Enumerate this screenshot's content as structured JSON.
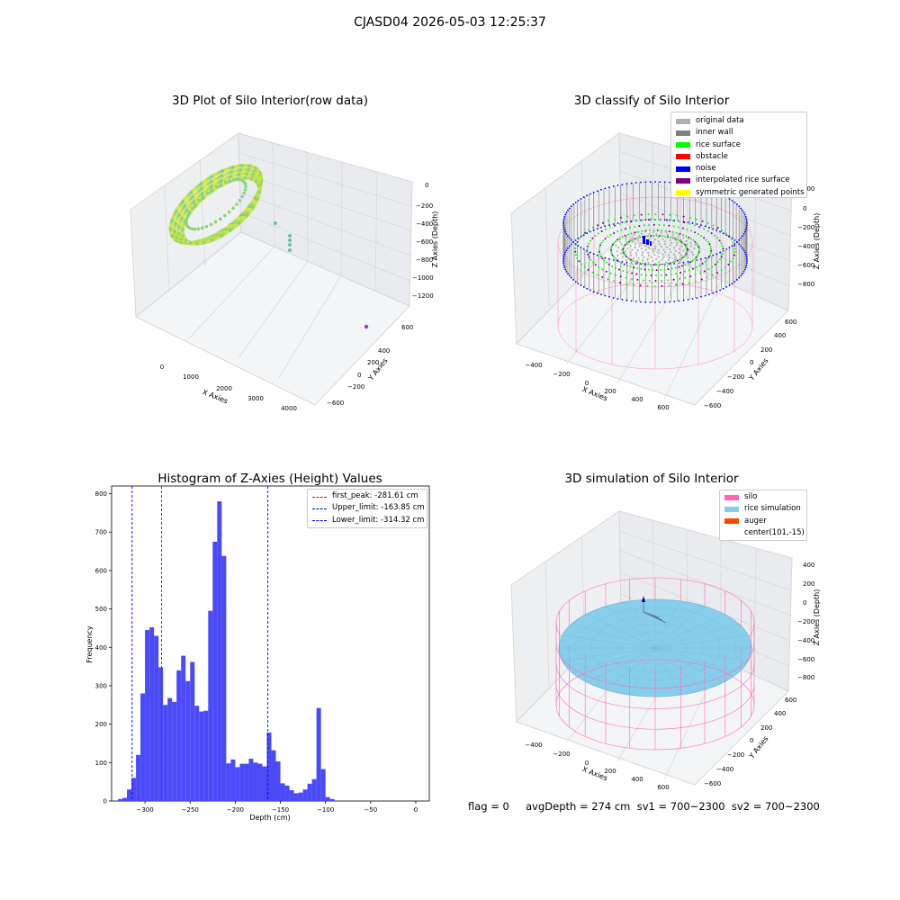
{
  "suptitle": "CJASD04 2026-05-03 12:25:37",
  "status_text": "flag = 0     avgDepth = 274 cm  sv1 = 700~2300  sv2 = 700~2300",
  "colors": {
    "pink": "#ff69b4",
    "skyblue": "#87ceeb",
    "hist": "#4a4af7",
    "red": "#ff0000",
    "blue": "#0000ff",
    "green": "#00ff00",
    "grey": "#b0b0b0"
  },
  "chart_data": [
    {
      "type": "scatter",
      "title": "3D Plot of Silo Interior(row data)",
      "xlabel": "X Axies",
      "ylabel": "Y Axies",
      "zlabel": "Z Axies (Depth)",
      "x_ticks": [
        "0",
        "1000",
        "2000",
        "3000",
        "4000"
      ],
      "y_ticks": [
        "600",
        "400",
        "200",
        "0",
        "−200",
        "−400",
        "−600"
      ],
      "z_ticks": [
        "0",
        "−200",
        "−400",
        "−600",
        "−800",
        "−1000",
        "−1200"
      ]
    },
    {
      "type": "scatter",
      "title": "3D classify of Silo Interior",
      "xlabel": "X Axies",
      "ylabel": "Y Axies",
      "zlabel": "Z Axies (Depth)",
      "x_ticks": [
        "−400",
        "−200",
        "0",
        "200",
        "400",
        "600"
      ],
      "y_ticks": [
        "600",
        "400",
        "200",
        "0",
        "−200",
        "−400",
        "−600"
      ],
      "z_ticks": [
        "200",
        "0",
        "−200",
        "−400",
        "−600",
        "−800"
      ],
      "legend": [
        {
          "label": "original data",
          "color": "#b0b0b0"
        },
        {
          "label": "inner wall",
          "color": "#808080"
        },
        {
          "label": "rice surface",
          "color": "#00ff00"
        },
        {
          "label": "obstacle",
          "color": "#ff0000"
        },
        {
          "label": "noise",
          "color": "#0000ff"
        },
        {
          "label": "interpolated rice surface",
          "color": "#800080"
        },
        {
          "label": "symmetric generated points",
          "color": "#ffff00"
        }
      ],
      "legend_position": "upper right"
    },
    {
      "type": "bar",
      "title": "Histogram of Z-Axies (Height) Values",
      "xlabel": "Depth (cm)",
      "ylabel": "Frequency",
      "xlim": [
        -337,
        15
      ],
      "ylim": [
        0,
        820
      ],
      "x_ticks": [
        -300,
        -250,
        -200,
        -150,
        -100,
        -50,
        0
      ],
      "y_ticks": [
        0,
        100,
        200,
        300,
        400,
        500,
        600,
        700,
        800
      ],
      "bin_start": -330,
      "bin_width": 5,
      "values": [
        5,
        8,
        30,
        60,
        120,
        280,
        445,
        452,
        430,
        348,
        250,
        268,
        258,
        340,
        378,
        312,
        362,
        248,
        233,
        235,
        495,
        675,
        780,
        638,
        98,
        108,
        88,
        97,
        97,
        110,
        100,
        97,
        90,
        178,
        132,
        103,
        46,
        40,
        28,
        20,
        22,
        30,
        45,
        57,
        242,
        83,
        10,
        5
      ],
      "vlines": [
        {
          "label": "first_peak: -281.61 cm",
          "x": -281.61,
          "color": "#ff0000"
        },
        {
          "label": "Upper_limit: -163.85 cm",
          "x": -163.85,
          "color": "#0000ff"
        },
        {
          "label": "Lower_limit: -314.32 cm",
          "x": -314.32,
          "color": "#0000ff"
        }
      ],
      "legend_position": "upper right"
    },
    {
      "type": "surface",
      "title": "3D simulation of Silo Interior",
      "xlabel": "X Axies",
      "ylabel": "Y Axies",
      "zlabel": "Z Axies (Depth)",
      "x_ticks": [
        "−400",
        "−200",
        "0",
        "200",
        "400",
        "600"
      ],
      "y_ticks": [
        "600",
        "400",
        "200",
        "0",
        "−200",
        "−400",
        "−600"
      ],
      "z_ticks": [
        "400",
        "200",
        "0",
        "−200",
        "−400",
        "−600",
        "−800"
      ],
      "legend": [
        {
          "label": "silo",
          "color": "#ff69b4"
        },
        {
          "label": "rice simulation",
          "color": "#87ceeb"
        },
        {
          "label": "auger",
          "color": "#ff4500"
        },
        {
          "label": "center(101,-15)",
          "color": ""
        }
      ],
      "legend_position": "upper right"
    }
  ]
}
